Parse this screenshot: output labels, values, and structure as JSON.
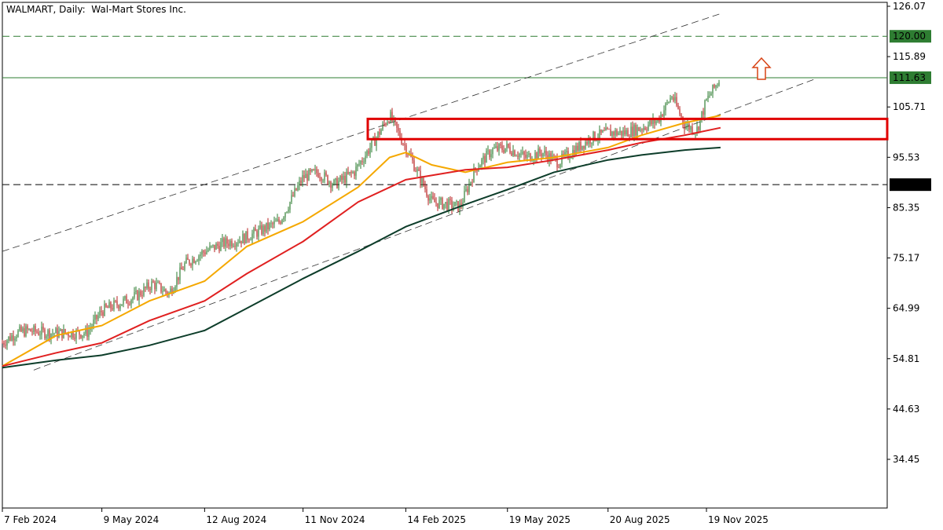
{
  "header": {
    "symbol": "WALMART",
    "timeframe": "Daily",
    "description": "Wal-Mart Stores Inc."
  },
  "chart_data": {
    "type": "candlestick",
    "y_ticks": [
      126.07,
      115.89,
      105.71,
      95.53,
      85.35,
      75.17,
      64.99,
      54.81,
      44.63,
      34.45
    ],
    "x_ticks": [
      "7 Feb 2024",
      "9 May 2024",
      "12 Aug 2024",
      "11 Nov 2024",
      "14 Feb 2025",
      "19 May 2025",
      "20 Aug 2025",
      "19 Nov 2025"
    ],
    "levels": [
      {
        "value": 120.0,
        "label": "120.00",
        "style": "dashed",
        "color": "#2e7d32"
      },
      {
        "value": 111.63,
        "label": "111.63",
        "style": "solid",
        "color": "#2e7d32"
      },
      {
        "value": 90.0,
        "label": "90.00",
        "style": "dashed",
        "color": "#000000"
      }
    ],
    "zone": {
      "top": 103.3,
      "bottom": 99.2,
      "color": "#e00000"
    },
    "moving_averages": [
      {
        "color": "#f5a800",
        "points": [
          [
            "7 Feb 2024",
            53.3
          ],
          [
            "28 Mar 2024",
            59.5
          ],
          [
            "9 May 2024",
            61.5
          ],
          [
            "22 Jun 2024",
            66.5
          ],
          [
            "12 Aug 2024",
            70.5
          ],
          [
            "20 Sep 2024",
            77.5
          ],
          [
            "11 Nov 2024",
            82.5
          ],
          [
            "1 Jan 2025",
            89.5
          ],
          [
            "30 Jan 2025",
            95.5
          ],
          [
            "14 Feb 2025",
            96.5
          ],
          [
            "10 Mar 2025",
            94.0
          ],
          [
            "10 Apr 2025",
            92.5
          ],
          [
            "19 May 2025",
            94.5
          ],
          [
            "1 Jul 2025",
            95.5
          ],
          [
            "20 Aug 2025",
            97.5
          ],
          [
            "20 Sep 2025",
            100.0
          ],
          [
            "30 Oct 2025",
            102.5
          ],
          [
            "2 Dec 2025",
            104.0
          ]
        ]
      },
      {
        "color": "#e02020",
        "points": [
          [
            "7 Feb 2024",
            53.3
          ],
          [
            "28 Mar 2024",
            56.0
          ],
          [
            "9 May 2024",
            58.0
          ],
          [
            "22 Jun 2024",
            62.5
          ],
          [
            "12 Aug 2024",
            66.5
          ],
          [
            "20 Sep 2024",
            72.0
          ],
          [
            "11 Nov 2024",
            78.5
          ],
          [
            "1 Jan 2025",
            86.5
          ],
          [
            "14 Feb 2025",
            91.0
          ],
          [
            "10 Apr 2025",
            93.0
          ],
          [
            "19 May 2025",
            93.5
          ],
          [
            "1 Jul 2025",
            95.0
          ],
          [
            "20 Aug 2025",
            97.0
          ],
          [
            "20 Sep 2025",
            98.5
          ],
          [
            "30 Oct 2025",
            100.0
          ],
          [
            "2 Dec 2025",
            101.5
          ]
        ]
      },
      {
        "color": "#0d3d2a",
        "points": [
          [
            "7 Feb 2024",
            53.0
          ],
          [
            "28 Mar 2024",
            54.5
          ],
          [
            "9 May 2024",
            55.5
          ],
          [
            "22 Jun 2024",
            57.5
          ],
          [
            "12 Aug 2024",
            60.5
          ],
          [
            "20 Sep 2024",
            65.0
          ],
          [
            "11 Nov 2024",
            71.0
          ],
          [
            "1 Jan 2025",
            76.5
          ],
          [
            "14 Feb 2025",
            81.5
          ],
          [
            "10 Apr 2025",
            86.0
          ],
          [
            "19 May 2025",
            89.0
          ],
          [
            "1 Jul 2025",
            92.5
          ],
          [
            "20 Aug 2025",
            95.0
          ],
          [
            "20 Sep 2025",
            96.0
          ],
          [
            "30 Oct 2025",
            97.0
          ],
          [
            "2 Dec 2025",
            97.5
          ]
        ]
      }
    ],
    "closes": [
      [
        "7 Feb 2024",
        58.0
      ],
      [
        "20 Feb 2024",
        60.0
      ],
      [
        "1 Mar 2024",
        60.5
      ],
      [
        "20 Mar 2024",
        60.0
      ],
      [
        "5 Apr 2024",
        60.0
      ],
      [
        "25 Apr 2024",
        60.0
      ],
      [
        "9 May 2024",
        64.5
      ],
      [
        "25 May 2024",
        66.0
      ],
      [
        "10 Jun 2024",
        67.5
      ],
      [
        "25 Jun 2024",
        70.0
      ],
      [
        "10 Jul 2024",
        68.0
      ],
      [
        "25 Jul 2024",
        74.0
      ],
      [
        "12 Aug 2024",
        76.5
      ],
      [
        "28 Aug 2024",
        78.0
      ],
      [
        "15 Sep 2024",
        79.0
      ],
      [
        "1 Oct 2024",
        80.5
      ],
      [
        "20 Oct 2024",
        82.5
      ],
      [
        "30 Oct 2024",
        86.5
      ],
      [
        "11 Nov 2024",
        91.5
      ],
      [
        "25 Nov 2024",
        92.5
      ],
      [
        "10 Dec 2024",
        90.0
      ],
      [
        "28 Dec 2024",
        92.5
      ],
      [
        "15 Jan 2025",
        98.5
      ],
      [
        "30 Jan 2025",
        104.0
      ],
      [
        "14 Feb 2025",
        97.5
      ],
      [
        "28 Feb 2025",
        91.0
      ],
      [
        "10 Mar 2025",
        86.5
      ],
      [
        "24 Mar 2025",
        86.0
      ],
      [
        "5 Apr 2025",
        85.5
      ],
      [
        "20 Apr 2025",
        93.5
      ],
      [
        "5 May 2025",
        97.0
      ],
      [
        "19 May 2025",
        97.5
      ],
      [
        "5 Jun 2025",
        95.5
      ],
      [
        "20 Jun 2025",
        96.5
      ],
      [
        "5 Jul 2025",
        94.5
      ],
      [
        "20 Jul 2025",
        97.0
      ],
      [
        "5 Aug 2025",
        99.5
      ],
      [
        "20 Aug 2025",
        100.5
      ],
      [
        "5 Sep 2025",
        100.5
      ],
      [
        "20 Sep 2025",
        101.5
      ],
      [
        "5 Oct 2025",
        103.0
      ],
      [
        "18 Oct 2025",
        108.0
      ],
      [
        "30 Oct 2025",
        102.0
      ],
      [
        "10 Nov 2025",
        101.0
      ],
      [
        "19 Nov 2025",
        107.0
      ],
      [
        "2 Dec 2025",
        111.6
      ]
    ],
    "channel_lines": [
      {
        "style": "dashed",
        "points": [
          [
            "7 Feb 2024",
            76.5
          ],
          [
            "1 Dec 2025",
            124.5
          ]
        ]
      },
      {
        "style": "dashed",
        "points": [
          [
            "7 Mar 2024",
            52.5
          ],
          [
            "1 Mar 2026",
            111.5
          ]
        ]
      }
    ],
    "annotation": "up-arrow"
  }
}
